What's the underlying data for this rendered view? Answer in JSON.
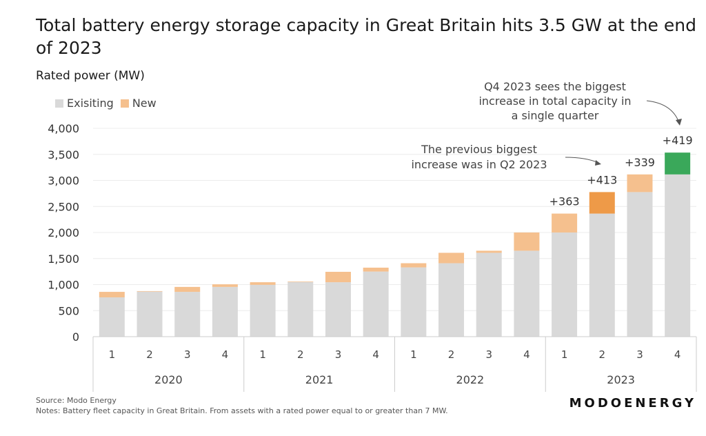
{
  "chart_data": {
    "type": "bar",
    "stacked": true,
    "title": "Total battery energy storage capacity in Great Britain hits 3.5 GW at the end of 2023",
    "ylabel": "Rated power (MW)",
    "ylim": [
      0,
      4000
    ],
    "yticks": [
      0,
      500,
      1000,
      1500,
      2000,
      2500,
      3000,
      3500,
      4000
    ],
    "ytick_labels": [
      "0",
      "500",
      "1,000",
      "1,500",
      "2,000",
      "2,500",
      "3,000",
      "3,500",
      "4,000"
    ],
    "grid": true,
    "legend_placement": "top-left",
    "years": [
      "2020",
      "2021",
      "2022",
      "2023"
    ],
    "categories": [
      "1",
      "2",
      "3",
      "4",
      "1",
      "2",
      "3",
      "4",
      "1",
      "2",
      "3",
      "4",
      "1",
      "2",
      "3",
      "4"
    ],
    "series": [
      {
        "name": "Exisiting",
        "color": "#d9d9d9",
        "values": [
          755,
          865,
          860,
          955,
          995,
          1050,
          1045,
          1250,
          1330,
          1410,
          1610,
          1650,
          2000,
          2363,
          2776,
          3115
        ]
      },
      {
        "name": "New",
        "color": "#f5c08e",
        "values": [
          105,
          10,
          95,
          50,
          50,
          10,
          200,
          75,
          80,
          200,
          40,
          350,
          363,
          413,
          339,
          419
        ]
      }
    ],
    "highlight_colors": {
      "13": "#ee9a48",
      "15": "#3aa85a"
    },
    "data_labels": [
      {
        "index": 12,
        "text": "+363"
      },
      {
        "index": 13,
        "text": "+413"
      },
      {
        "index": 14,
        "text": "+339"
      },
      {
        "index": 15,
        "text": "+419"
      }
    ],
    "annotations": [
      {
        "lines": [
          "Q4 2023 sees the biggest",
          "increase in total capacity in",
          "a single quarter"
        ]
      },
      {
        "lines": [
          "The previous biggest",
          "increase was in Q2 2023"
        ]
      }
    ]
  },
  "footer": {
    "source": "Source: Modo Energy",
    "notes": "Notes: Battery fleet capacity in Great Britain. From assets with a rated power equal to or greater than 7 MW.",
    "brand": "MODOENERGY"
  }
}
